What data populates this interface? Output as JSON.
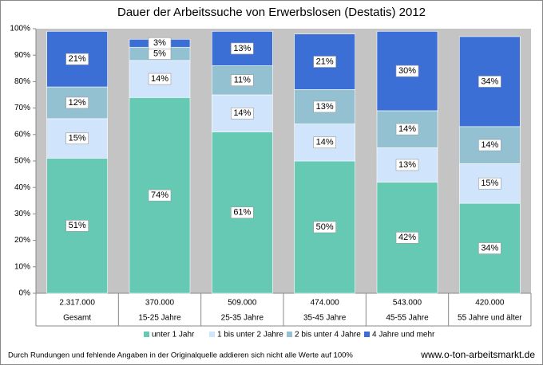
{
  "chart_data": {
    "type": "stacked_bar_percent",
    "title": "Dauer der Arbeitssuche von Erwerbslosen (Destatis) 2012",
    "categories": [
      "Gesamt",
      "15-25 Jahre",
      "25-35 Jahre",
      "35-45 Jahre",
      "45-55 Jahre",
      "55 Jahre und älter"
    ],
    "category_counts": [
      "2.317.000",
      "370.000",
      "509.000",
      "474.000",
      "543.000",
      "420.000"
    ],
    "series": [
      {
        "name": "unter 1 Jahr",
        "color": "#66c9b4",
        "values": [
          51,
          74,
          61,
          50,
          42,
          34
        ],
        "value_labels": [
          "51%",
          "74%",
          "61%",
          "50%",
          "42%",
          "34%"
        ]
      },
      {
        "name": "1 bis unter 2 Jahre",
        "color": "#d0e4fb",
        "values": [
          15,
          14,
          14,
          14,
          13,
          15
        ],
        "value_labels": [
          "15%",
          "14%",
          "14%",
          "14%",
          "13%",
          "15%"
        ]
      },
      {
        "name": "2 bis unter 4 Jahre",
        "color": "#93c1d2",
        "values": [
          12,
          5,
          11,
          13,
          14,
          14
        ],
        "value_labels": [
          "12%",
          "5%",
          "11%",
          "13%",
          "14%",
          "14%"
        ]
      },
      {
        "name": "4 Jahre und mehr",
        "color": "#3b6fd6",
        "values": [
          21,
          3,
          13,
          21,
          30,
          34
        ],
        "value_labels": [
          "21%",
          "3%",
          "13%",
          "21%",
          "30%",
          "34%"
        ]
      }
    ],
    "ylim": [
      0,
      100
    ],
    "yticks": [
      {
        "value": 0,
        "label": "0%"
      },
      {
        "value": 10,
        "label": "10%"
      },
      {
        "value": 20,
        "label": "20%"
      },
      {
        "value": 30,
        "label": "30%"
      },
      {
        "value": 40,
        "label": "40%"
      },
      {
        "value": 50,
        "label": "50%"
      },
      {
        "value": 60,
        "label": "60%"
      },
      {
        "value": 70,
        "label": "70%"
      },
      {
        "value": 80,
        "label": "80%"
      },
      {
        "value": 90,
        "label": "90%"
      },
      {
        "value": 100,
        "label": "100%"
      }
    ],
    "grid": false,
    "footnote": "Durch Rundungen und fehlende Angaben in der Originalquelle addieren sich nicht alle Werte auf 100%",
    "source": "www.o-ton-arbeitsmarkt.de"
  }
}
